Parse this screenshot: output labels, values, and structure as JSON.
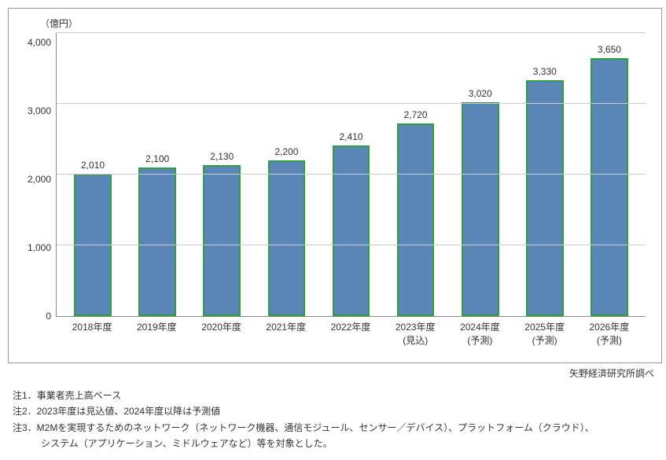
{
  "chart": {
    "type": "bar",
    "y_unit": "（億円）",
    "ylim": [
      0,
      4000
    ],
    "ytick_step": 1000,
    "yticks_labels": [
      "4,000",
      "3,000",
      "2,000",
      "1,000",
      "0"
    ],
    "grid_color": "#cccccc",
    "axis_color": "#888888",
    "bar_fill": "#5b87b8",
    "bar_border": "#2e9e3f",
    "bar_border_width": 2,
    "background_color": "#ffffff",
    "label_fontsize": 12,
    "categories": [
      {
        "line1": "2018年度",
        "line2": ""
      },
      {
        "line1": "2019年度",
        "line2": ""
      },
      {
        "line1": "2020年度",
        "line2": ""
      },
      {
        "line1": "2021年度",
        "line2": ""
      },
      {
        "line1": "2022年度",
        "line2": ""
      },
      {
        "line1": "2023年度",
        "line2": "(見込)"
      },
      {
        "line1": "2024年度",
        "line2": "(予測)"
      },
      {
        "line1": "2025年度",
        "line2": "(予測)"
      },
      {
        "line1": "2026年度",
        "line2": "(予測)"
      }
    ],
    "values": [
      2010,
      2100,
      2130,
      2200,
      2410,
      2720,
      3020,
      3330,
      3650
    ],
    "value_labels": [
      "2,010",
      "2,100",
      "2,130",
      "2,200",
      "2,410",
      "2,720",
      "3,020",
      "3,330",
      "3,650"
    ]
  },
  "source": "矢野経済研究所調べ",
  "notes": {
    "n1": "注1．事業者売上高ベース",
    "n2": "注2．2023年度は見込値、2024年度以降は予測値",
    "n3a": "注3．M2Mを実現するためのネットワーク（ネットワーク機器、通信モジュール、センサー／デバイス）、プラットフォーム（クラウド）、",
    "n3b": "システム（アプリケーション、ミドルウェアなど）等を対象とした。"
  }
}
